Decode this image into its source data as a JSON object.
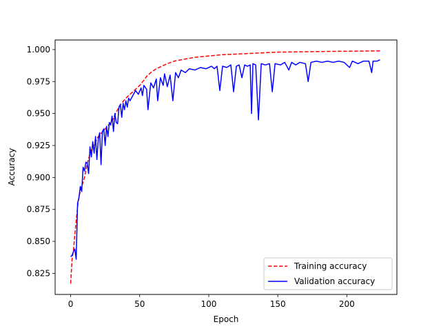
{
  "chart_data": {
    "type": "line",
    "xlabel": "Epoch",
    "ylabel": "Accuracy",
    "xlim": [
      -11.25,
      236.25
    ],
    "ylim": [
      0.8085,
      1.0075
    ],
    "xticks": [
      0,
      50,
      100,
      150,
      200
    ],
    "xtick_labels": [
      "0",
      "50",
      "100",
      "150",
      "200"
    ],
    "yticks": [
      0.825,
      0.85,
      0.875,
      0.9,
      0.925,
      0.95,
      0.975,
      1.0
    ],
    "ytick_labels": [
      "0.825",
      "0.850",
      "0.875",
      "0.900",
      "0.925",
      "0.950",
      "0.975",
      "1.000"
    ],
    "grid": false,
    "legend_position": "lower-right",
    "series": [
      {
        "name": "Training accuracy",
        "color": "#ff0000",
        "style": "dashed",
        "points": [
          [
            0,
            0.817
          ],
          [
            1,
            0.836
          ],
          [
            2,
            0.843
          ],
          [
            3,
            0.855
          ],
          [
            4,
            0.866
          ],
          [
            5,
            0.877
          ],
          [
            6,
            0.885
          ],
          [
            8,
            0.893
          ],
          [
            10,
            0.9
          ],
          [
            12,
            0.911
          ],
          [
            15,
            0.922
          ],
          [
            20,
            0.932
          ],
          [
            25,
            0.938
          ],
          [
            30,
            0.944
          ],
          [
            33,
            0.951
          ],
          [
            36,
            0.957
          ],
          [
            40,
            0.962
          ],
          [
            45,
            0.967
          ],
          [
            50,
            0.972
          ],
          [
            53,
            0.976
          ],
          [
            55,
            0.979
          ],
          [
            58,
            0.982
          ],
          [
            62,
            0.985
          ],
          [
            66,
            0.987
          ],
          [
            70,
            0.989
          ],
          [
            75,
            0.991
          ],
          [
            80,
            0.992
          ],
          [
            90,
            0.994
          ],
          [
            100,
            0.995
          ],
          [
            110,
            0.996
          ],
          [
            120,
            0.9965
          ],
          [
            130,
            0.997
          ],
          [
            140,
            0.9975
          ],
          [
            150,
            0.998
          ],
          [
            170,
            0.9983
          ],
          [
            190,
            0.9986
          ],
          [
            210,
            0.9988
          ],
          [
            224,
            0.999
          ]
        ]
      },
      {
        "name": "Validation accuracy",
        "color": "#0000ff",
        "style": "solid",
        "points": [
          [
            0,
            0.838
          ],
          [
            1,
            0.839
          ],
          [
            2,
            0.842
          ],
          [
            3,
            0.844
          ],
          [
            4,
            0.836
          ],
          [
            5,
            0.88
          ],
          [
            6,
            0.884
          ],
          [
            7,
            0.893
          ],
          [
            8,
            0.889
          ],
          [
            9,
            0.908
          ],
          [
            10,
            0.905
          ],
          [
            11,
            0.912
          ],
          [
            12,
            0.911
          ],
          [
            13,
            0.903
          ],
          [
            14,
            0.924
          ],
          [
            15,
            0.916
          ],
          [
            16,
            0.928
          ],
          [
            17,
            0.919
          ],
          [
            18,
            0.932
          ],
          [
            19,
            0.914
          ],
          [
            20,
            0.93
          ],
          [
            21,
            0.935
          ],
          [
            22,
            0.91
          ],
          [
            23,
            0.936
          ],
          [
            24,
            0.938
          ],
          [
            25,
            0.925
          ],
          [
            26,
            0.94
          ],
          [
            27,
            0.932
          ],
          [
            28,
            0.943
          ],
          [
            29,
            0.941
          ],
          [
            30,
            0.948
          ],
          [
            31,
            0.936
          ],
          [
            32,
            0.95
          ],
          [
            33,
            0.943
          ],
          [
            34,
            0.942
          ],
          [
            35,
            0.955
          ],
          [
            36,
            0.957
          ],
          [
            37,
            0.947
          ],
          [
            38,
            0.958
          ],
          [
            39,
            0.953
          ],
          [
            40,
            0.96
          ],
          [
            41,
            0.955
          ],
          [
            42,
            0.962
          ],
          [
            43,
            0.96
          ],
          [
            45,
            0.964
          ],
          [
            47,
            0.968
          ],
          [
            49,
            0.965
          ],
          [
            51,
            0.97
          ],
          [
            52,
            0.964
          ],
          [
            53,
            0.972
          ],
          [
            55,
            0.969
          ],
          [
            56,
            0.953
          ],
          [
            58,
            0.974
          ],
          [
            60,
            0.97
          ],
          [
            62,
            0.977
          ],
          [
            63,
            0.96
          ],
          [
            65,
            0.978
          ],
          [
            67,
            0.972
          ],
          [
            68,
            0.981
          ],
          [
            70,
            0.971
          ],
          [
            72,
            0.98
          ],
          [
            74,
            0.96
          ],
          [
            76,
            0.982
          ],
          [
            78,
            0.978
          ],
          [
            80,
            0.984
          ],
          [
            83,
            0.982
          ],
          [
            86,
            0.985
          ],
          [
            90,
            0.984
          ],
          [
            94,
            0.986
          ],
          [
            98,
            0.985
          ],
          [
            102,
            0.987
          ],
          [
            104,
            0.985
          ],
          [
            106,
            0.987
          ],
          [
            108,
            0.968
          ],
          [
            110,
            0.987
          ],
          [
            113,
            0.986
          ],
          [
            116,
            0.988
          ],
          [
            118,
            0.967
          ],
          [
            120,
            0.987
          ],
          [
            122,
            0.988
          ],
          [
            124,
            0.978
          ],
          [
            126,
            0.988
          ],
          [
            128,
            0.987
          ],
          [
            130,
            0.988
          ],
          [
            131,
            0.95
          ],
          [
            132,
            0.989
          ],
          [
            134,
            0.988
          ],
          [
            136,
            0.945
          ],
          [
            138,
            0.989
          ],
          [
            141,
            0.988
          ],
          [
            144,
            0.989
          ],
          [
            146,
            0.967
          ],
          [
            148,
            0.989
          ],
          [
            152,
            0.988
          ],
          [
            155,
            0.99
          ],
          [
            158,
            0.984
          ],
          [
            160,
            0.99
          ],
          [
            163,
            0.988
          ],
          [
            166,
            0.99
          ],
          [
            170,
            0.989
          ],
          [
            172,
            0.975
          ],
          [
            174,
            0.99
          ],
          [
            178,
            0.991
          ],
          [
            182,
            0.99
          ],
          [
            186,
            0.991
          ],
          [
            190,
            0.99
          ],
          [
            194,
            0.991
          ],
          [
            198,
            0.99
          ],
          [
            202,
            0.986
          ],
          [
            204,
            0.991
          ],
          [
            208,
            0.989
          ],
          [
            212,
            0.991
          ],
          [
            216,
            0.991
          ],
          [
            218,
            0.982
          ],
          [
            219,
            0.991
          ],
          [
            222,
            0.991
          ],
          [
            224,
            0.992
          ]
        ]
      }
    ]
  }
}
